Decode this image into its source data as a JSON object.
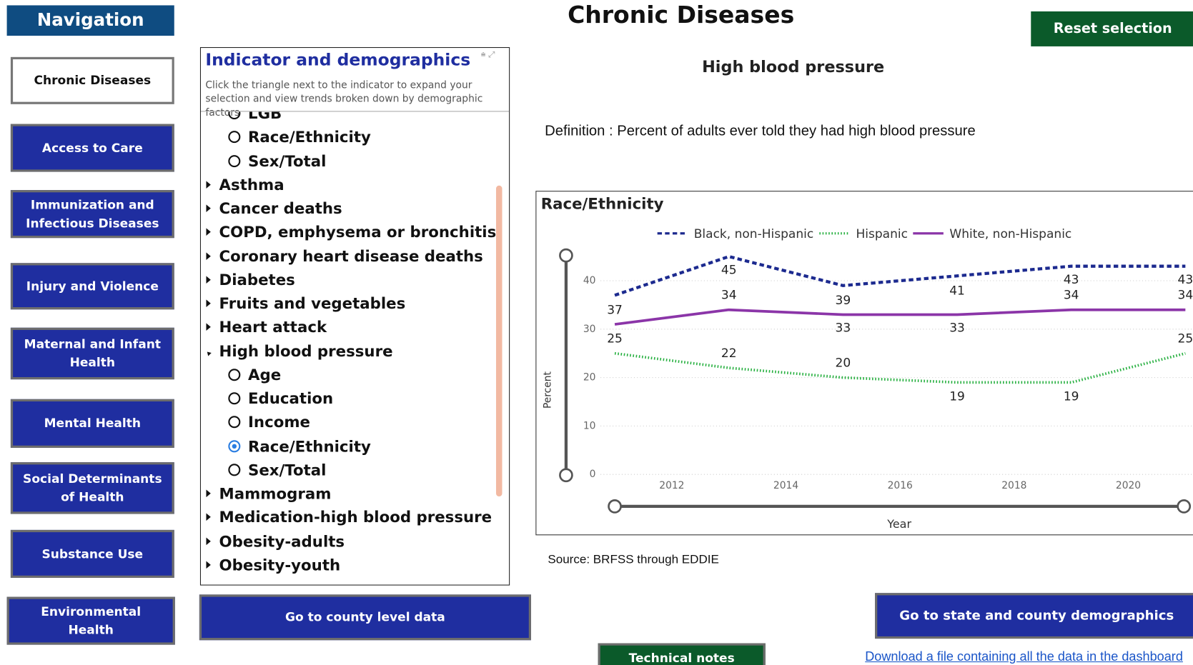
{
  "navigation": {
    "title": "Navigation",
    "items": [
      "Chronic Diseases",
      "Access to Care",
      "Immunization and Infectious Diseases",
      "Injury and Violence",
      "Maternal and Infant Health",
      "Mental Health",
      "Social Determinants of Health",
      "Substance Use",
      "Environmental Health"
    ],
    "active": 0
  },
  "header": {
    "title": "Chronic Diseases",
    "reset": "Reset selection"
  },
  "panel": {
    "title": "Indicator and demographics",
    "description": "Click the triangle next to the indicator to expand your selection and view trends broken down by demographic factors",
    "items": [
      {
        "label": "LGB",
        "kind": "option"
      },
      {
        "label": "Race/Ethnicity",
        "kind": "option"
      },
      {
        "label": "Sex/Total",
        "kind": "option"
      },
      {
        "label": "Asthma",
        "kind": "group"
      },
      {
        "label": "Cancer deaths",
        "kind": "group"
      },
      {
        "label": "COPD, emphysema or bronchitis",
        "kind": "group"
      },
      {
        "label": "Coronary heart disease deaths",
        "kind": "group"
      },
      {
        "label": "Diabetes",
        "kind": "group"
      },
      {
        "label": "Fruits and vegetables",
        "kind": "group"
      },
      {
        "label": "Heart attack",
        "kind": "group"
      },
      {
        "label": "High blood pressure",
        "kind": "group",
        "expanded": true
      },
      {
        "label": "Age",
        "kind": "option"
      },
      {
        "label": "Education",
        "kind": "option"
      },
      {
        "label": "Income",
        "kind": "option"
      },
      {
        "label": "Race/Ethnicity",
        "kind": "option",
        "selected": true
      },
      {
        "label": "Sex/Total",
        "kind": "option"
      },
      {
        "label": "Mammogram",
        "kind": "group"
      },
      {
        "label": "Medication-high blood pressure",
        "kind": "group"
      },
      {
        "label": "Obesity-adults",
        "kind": "group"
      },
      {
        "label": "Obesity-youth",
        "kind": "group"
      }
    ]
  },
  "indicator": {
    "title": "High blood pressure",
    "definition": "Definition : Percent of adults ever told they had high blood pressure",
    "source": "Source: BRFSS through EDDIE"
  },
  "chart_data": {
    "type": "line",
    "title": "Race/Ethnicity",
    "x_label": "Year",
    "y_label": "Percent",
    "x": [
      2011,
      2013,
      2015,
      2017,
      2019,
      2021
    ],
    "series": [
      {
        "name": "Black, non-Hispanic",
        "color": "#1c2a8f",
        "style": "dashed",
        "values": [
          37,
          45,
          39,
          41,
          43,
          43
        ]
      },
      {
        "name": "Hispanic",
        "color": "#27b040",
        "style": "dotted",
        "values": [
          25,
          22,
          20,
          19,
          19,
          25
        ]
      },
      {
        "name": "White, non-Hispanic",
        "color": "#8b35a8",
        "style": "solid",
        "values": [
          31,
          34,
          33,
          33,
          34,
          34
        ],
        "value_labels": [
          null,
          "34",
          "33",
          "33",
          "34",
          "34"
        ]
      }
    ],
    "xlim": [
      2010.75,
      2021.25
    ],
    "ylim": [
      0,
      45
    ],
    "xticks": [
      2012,
      2014,
      2016,
      2018,
      2020
    ],
    "yticks": [
      0,
      10,
      20,
      30,
      40
    ],
    "grid": true
  },
  "footer": {
    "county": "Go to county level data",
    "state": "Go to state and county demographics",
    "notes": "Technical notes",
    "download": "Download a file containing all the data in the dashboard"
  }
}
